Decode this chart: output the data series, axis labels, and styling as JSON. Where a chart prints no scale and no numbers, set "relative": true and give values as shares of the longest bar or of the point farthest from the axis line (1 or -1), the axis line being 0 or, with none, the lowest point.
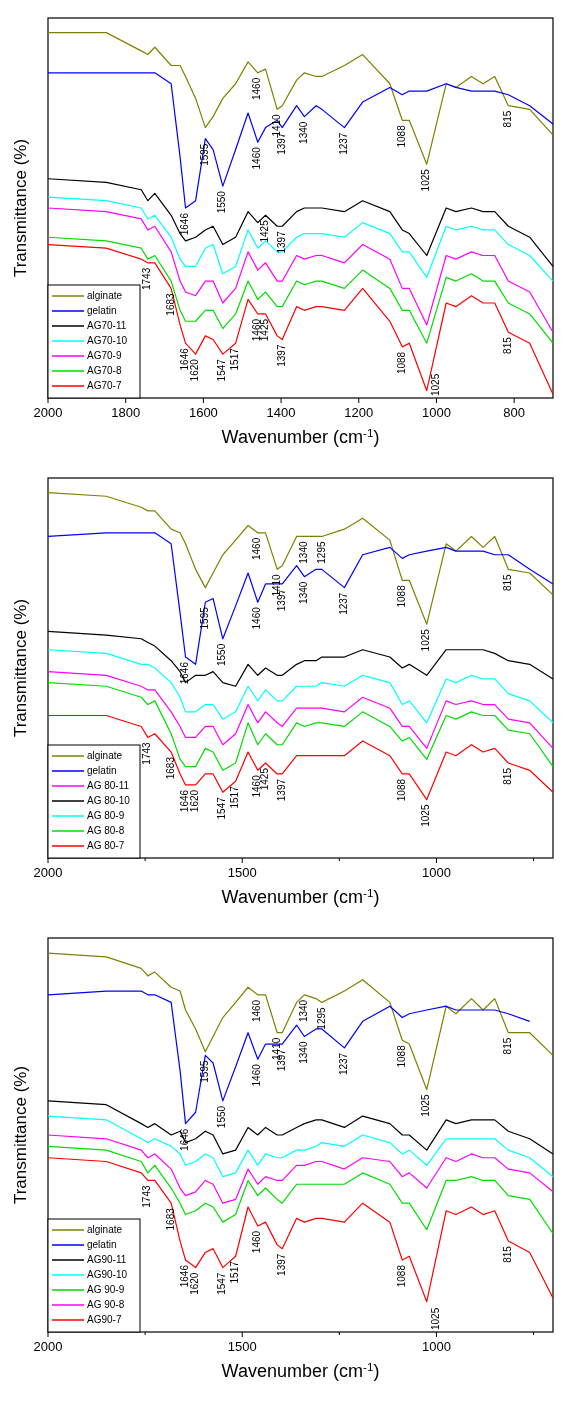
{
  "chart_data": [
    {
      "type": "line",
      "relative": true,
      "xlabel": "Wavenumber (cm$^{-1}$)",
      "ylabel": "Transmittance (%)",
      "xlim": [
        2000,
        700
      ],
      "xticks": [
        2000,
        1800,
        1600,
        1400,
        1200,
        1000,
        800
      ],
      "legend": "bottom left",
      "x": [
        2000,
        1850,
        1760,
        1743,
        1725,
        1683,
        1660,
        1646,
        1620,
        1595,
        1575,
        1550,
        1517,
        1485,
        1460,
        1440,
        1410,
        1397,
        1360,
        1340,
        1310,
        1295,
        1237,
        1190,
        1120,
        1088,
        1070,
        1025,
        975,
        950,
        910,
        880,
        850,
        815,
        760,
        700
      ],
      "series": [
        {
          "name": "alginate",
          "color": "#808000",
          "values": [
            1.0,
            1.0,
            0.95,
            0.94,
            0.96,
            0.91,
            0.91,
            0.88,
            0.82,
            0.74,
            0.77,
            0.82,
            0.86,
            0.92,
            0.89,
            0.9,
            0.79,
            0.8,
            0.87,
            0.89,
            0.88,
            0.88,
            0.91,
            0.94,
            0.86,
            0.76,
            0.76,
            0.64,
            0.86,
            0.85,
            0.88,
            0.86,
            0.88,
            0.8,
            0.79,
            0.72
          ]
        },
        {
          "name": "gelatin",
          "color": "#0000ff",
          "values": [
            0.89,
            0.89,
            0.89,
            0.89,
            0.89,
            0.86,
            0.66,
            0.52,
            0.54,
            0.71,
            0.68,
            0.58,
            0.68,
            0.78,
            0.7,
            0.74,
            0.76,
            0.74,
            0.8,
            0.77,
            0.8,
            0.79,
            0.74,
            0.81,
            0.85,
            0.83,
            0.84,
            0.84,
            0.86,
            0.85,
            0.84,
            0.84,
            0.84,
            0.83,
            0.8,
            0.75
          ]
        },
        {
          "name": "AG70-11",
          "color": "#000000",
          "values": [
            0.6,
            0.59,
            0.57,
            0.54,
            0.56,
            0.5,
            0.45,
            0.43,
            0.44,
            0.46,
            0.47,
            0.42,
            0.44,
            0.51,
            0.48,
            0.5,
            0.47,
            0.47,
            0.51,
            0.52,
            0.52,
            0.52,
            0.51,
            0.54,
            0.51,
            0.46,
            0.45,
            0.39,
            0.52,
            0.51,
            0.52,
            0.51,
            0.51,
            0.47,
            0.44,
            0.36
          ]
        },
        {
          "name": "AG70-10",
          "color": "#00ffff",
          "values": [
            0.55,
            0.54,
            0.52,
            0.49,
            0.5,
            0.44,
            0.38,
            0.36,
            0.36,
            0.41,
            0.42,
            0.34,
            0.36,
            0.46,
            0.41,
            0.43,
            0.4,
            0.4,
            0.44,
            0.45,
            0.45,
            0.45,
            0.44,
            0.48,
            0.45,
            0.4,
            0.4,
            0.33,
            0.47,
            0.46,
            0.47,
            0.46,
            0.46,
            0.42,
            0.39,
            0.32
          ]
        },
        {
          "name": "AG70-9",
          "color": "#ff00ff",
          "values": [
            0.52,
            0.51,
            0.49,
            0.46,
            0.47,
            0.4,
            0.32,
            0.29,
            0.28,
            0.32,
            0.32,
            0.26,
            0.3,
            0.4,
            0.35,
            0.37,
            0.32,
            0.32,
            0.39,
            0.38,
            0.39,
            0.39,
            0.37,
            0.42,
            0.38,
            0.3,
            0.3,
            0.2,
            0.39,
            0.38,
            0.4,
            0.39,
            0.39,
            0.32,
            0.29,
            0.18
          ]
        },
        {
          "name": "AG70-8",
          "color": "#00dd00",
          "values": [
            0.44,
            0.43,
            0.41,
            0.38,
            0.39,
            0.32,
            0.24,
            0.21,
            0.21,
            0.24,
            0.24,
            0.19,
            0.23,
            0.32,
            0.27,
            0.29,
            0.25,
            0.25,
            0.32,
            0.31,
            0.32,
            0.32,
            0.3,
            0.35,
            0.3,
            0.24,
            0.24,
            0.15,
            0.33,
            0.32,
            0.34,
            0.32,
            0.32,
            0.26,
            0.23,
            0.15
          ]
        },
        {
          "name": "AG70-7",
          "color": "#ff0000",
          "values": [
            0.42,
            0.41,
            0.38,
            0.37,
            0.37,
            0.3,
            0.2,
            0.15,
            0.12,
            0.17,
            0.16,
            0.12,
            0.15,
            0.27,
            0.23,
            0.23,
            0.17,
            0.16,
            0.25,
            0.24,
            0.25,
            0.25,
            0.24,
            0.3,
            0.21,
            0.14,
            0.15,
            0.02,
            0.26,
            0.25,
            0.28,
            0.26,
            0.26,
            0.18,
            0.15,
            0.01
          ]
        }
      ],
      "annotations": [
        {
          "text": "1595",
          "x": 1595,
          "y": 0.71
        },
        {
          "text": "1410",
          "x": 1410,
          "y": 0.79
        },
        {
          "text": "1460",
          "x": 1460,
          "y": 0.89
        },
        {
          "text": "1646",
          "x": 1646,
          "y": 0.52
        },
        {
          "text": "1550",
          "x": 1550,
          "y": 0.58
        },
        {
          "text": "1460",
          "x": 1460,
          "y": 0.7
        },
        {
          "text": "1397",
          "x": 1397,
          "y": 0.74
        },
        {
          "text": "1340",
          "x": 1340,
          "y": 0.77
        },
        {
          "text": "1237",
          "x": 1237,
          "y": 0.74
        },
        {
          "text": "1088",
          "x": 1088,
          "y": 0.76
        },
        {
          "text": "1025",
          "x": 1025,
          "y": 0.64
        },
        {
          "text": "815",
          "x": 815,
          "y": 0.8
        },
        {
          "text": "1425",
          "x": 1440,
          "y": 0.5
        },
        {
          "text": "1397",
          "x": 1397,
          "y": 0.47
        },
        {
          "text": "1743",
          "x": 1743,
          "y": 0.37
        },
        {
          "text": "1683",
          "x": 1683,
          "y": 0.3
        },
        {
          "text": "1646",
          "x": 1646,
          "y": 0.15
        },
        {
          "text": "1620",
          "x": 1620,
          "y": 0.12
        },
        {
          "text": "1547",
          "x": 1550,
          "y": 0.12
        },
        {
          "text": "1517",
          "x": 1517,
          "y": 0.15
        },
        {
          "text": "1460",
          "x": 1460,
          "y": 0.23
        },
        {
          "text": "1425",
          "x": 1440,
          "y": 0.23
        },
        {
          "text": "1397",
          "x": 1397,
          "y": 0.16
        },
        {
          "text": "1088",
          "x": 1088,
          "y": 0.14
        },
        {
          "text": "1025",
          "x": 1025,
          "y": 0.02
        },
        {
          "text": "815",
          "x": 815,
          "y": 0.18
        }
      ]
    },
    {
      "type": "line",
      "relative": true,
      "xlabel": "Wavenumber (cm$^{-1}$)",
      "ylabel": "Transmittance (%)",
      "xlim": [
        2000,
        700
      ],
      "xticks": [
        2000,
        {
          "value": 1750,
          "label": null
        },
        1500,
        {
          "value": 1250,
          "label": null
        },
        1000,
        {
          "value": 750,
          "label": null
        }
      ],
      "legend": "bottom left",
      "x": [
        2000,
        1850,
        1760,
        1743,
        1725,
        1683,
        1660,
        1646,
        1620,
        1595,
        1575,
        1550,
        1517,
        1485,
        1460,
        1440,
        1410,
        1397,
        1360,
        1340,
        1310,
        1295,
        1237,
        1190,
        1120,
        1088,
        1070,
        1025,
        975,
        950,
        910,
        880,
        850,
        815,
        760,
        700
      ],
      "series": [
        {
          "name": "alginate",
          "color": "#808000",
          "values": [
            1.0,
            0.99,
            0.96,
            0.95,
            0.95,
            0.9,
            0.89,
            0.86,
            0.79,
            0.74,
            0.78,
            0.83,
            0.87,
            0.91,
            0.89,
            0.89,
            0.79,
            0.8,
            0.88,
            0.88,
            0.88,
            0.88,
            0.9,
            0.93,
            0.87,
            0.76,
            0.76,
            0.64,
            0.86,
            0.84,
            0.88,
            0.85,
            0.88,
            0.79,
            0.78,
            0.72
          ]
        },
        {
          "name": "gelatin",
          "color": "#0000ff",
          "values": [
            0.88,
            0.89,
            0.89,
            0.89,
            0.89,
            0.86,
            0.67,
            0.55,
            0.53,
            0.7,
            0.71,
            0.6,
            0.69,
            0.78,
            0.7,
            0.75,
            0.75,
            0.75,
            0.8,
            0.77,
            0.79,
            0.79,
            0.74,
            0.83,
            0.85,
            0.82,
            0.83,
            0.84,
            0.85,
            0.84,
            0.84,
            0.84,
            0.83,
            0.83,
            0.79,
            0.75
          ]
        },
        {
          "name": "AG 80-11",
          "color": "#ff00ff",
          "values": [
            0.51,
            0.5,
            0.47,
            0.46,
            0.46,
            0.4,
            0.36,
            0.33,
            0.33,
            0.36,
            0.36,
            0.31,
            0.34,
            0.42,
            0.37,
            0.4,
            0.37,
            0.36,
            0.41,
            0.41,
            0.41,
            0.41,
            0.4,
            0.44,
            0.41,
            0.36,
            0.36,
            0.3,
            0.43,
            0.42,
            0.43,
            0.42,
            0.42,
            0.38,
            0.37,
            0.3
          ]
        },
        {
          "name": "AG 80-10",
          "color": "#000000",
          "values": [
            0.62,
            0.61,
            0.6,
            0.59,
            0.58,
            0.54,
            0.51,
            0.48,
            0.5,
            0.5,
            0.51,
            0.48,
            0.47,
            0.53,
            0.5,
            0.52,
            0.5,
            0.5,
            0.53,
            0.54,
            0.54,
            0.55,
            0.55,
            0.57,
            0.55,
            0.52,
            0.53,
            0.5,
            0.57,
            0.57,
            0.57,
            0.57,
            0.56,
            0.54,
            0.53,
            0.49
          ]
        },
        {
          "name": "AG 80-9",
          "color": "#00ffff",
          "values": [
            0.57,
            0.56,
            0.53,
            0.53,
            0.52,
            0.48,
            0.44,
            0.4,
            0.4,
            0.42,
            0.42,
            0.38,
            0.4,
            0.47,
            0.43,
            0.46,
            0.43,
            0.43,
            0.47,
            0.47,
            0.47,
            0.48,
            0.47,
            0.5,
            0.48,
            0.42,
            0.43,
            0.37,
            0.49,
            0.48,
            0.5,
            0.49,
            0.49,
            0.45,
            0.43,
            0.37
          ]
        },
        {
          "name": "AG 80-8",
          "color": "#00dd00",
          "values": [
            0.48,
            0.47,
            0.44,
            0.42,
            0.43,
            0.34,
            0.27,
            0.25,
            0.25,
            0.3,
            0.29,
            0.24,
            0.26,
            0.37,
            0.31,
            0.34,
            0.31,
            0.31,
            0.37,
            0.36,
            0.37,
            0.37,
            0.36,
            0.4,
            0.36,
            0.32,
            0.33,
            0.27,
            0.39,
            0.38,
            0.4,
            0.39,
            0.39,
            0.35,
            0.34,
            0.25
          ]
        },
        {
          "name": "AG 80-7",
          "color": "#ff0000",
          "values": [
            0.39,
            0.39,
            0.36,
            0.33,
            0.34,
            0.29,
            0.23,
            0.2,
            0.2,
            0.23,
            0.23,
            0.18,
            0.21,
            0.29,
            0.24,
            0.26,
            0.23,
            0.23,
            0.28,
            0.28,
            0.28,
            0.28,
            0.28,
            0.32,
            0.28,
            0.23,
            0.23,
            0.16,
            0.29,
            0.28,
            0.31,
            0.29,
            0.3,
            0.26,
            0.24,
            0.18
          ]
        }
      ],
      "annotations": [
        {
          "text": "1595",
          "x": 1595,
          "y": 0.7
        },
        {
          "text": "1460",
          "x": 1460,
          "y": 0.89
        },
        {
          "text": "1410",
          "x": 1410,
          "y": 0.79
        },
        {
          "text": "1340",
          "x": 1340,
          "y": 0.88
        },
        {
          "text": "1295",
          "x": 1295,
          "y": 0.88
        },
        {
          "text": "1646",
          "x": 1646,
          "y": 0.55
        },
        {
          "text": "1550",
          "x": 1550,
          "y": 0.6
        },
        {
          "text": "1460",
          "x": 1460,
          "y": 0.7
        },
        {
          "text": "1397",
          "x": 1397,
          "y": 0.75
        },
        {
          "text": "1340",
          "x": 1340,
          "y": 0.77
        },
        {
          "text": "1237",
          "x": 1237,
          "y": 0.74
        },
        {
          "text": "1088",
          "x": 1088,
          "y": 0.76
        },
        {
          "text": "1025",
          "x": 1025,
          "y": 0.64
        },
        {
          "text": "815",
          "x": 815,
          "y": 0.79
        },
        {
          "text": "1743",
          "x": 1743,
          "y": 0.33
        },
        {
          "text": "1683",
          "x": 1683,
          "y": 0.29
        },
        {
          "text": "1646",
          "x": 1646,
          "y": 0.2
        },
        {
          "text": "1620",
          "x": 1620,
          "y": 0.2
        },
        {
          "text": "1547",
          "x": 1550,
          "y": 0.18
        },
        {
          "text": "1517",
          "x": 1517,
          "y": 0.21
        },
        {
          "text": "1460",
          "x": 1460,
          "y": 0.24
        },
        {
          "text": "1425",
          "x": 1440,
          "y": 0.26
        },
        {
          "text": "1397",
          "x": 1397,
          "y": 0.23
        },
        {
          "text": "1088",
          "x": 1088,
          "y": 0.23
        },
        {
          "text": "1025",
          "x": 1025,
          "y": 0.16
        },
        {
          "text": "815",
          "x": 815,
          "y": 0.26
        }
      ]
    },
    {
      "type": "line",
      "relative": true,
      "xlabel": "Wavenumber (cm$^{-1}$)",
      "ylabel": "Transmittance (%)",
      "xlim": [
        2000,
        700
      ],
      "xticks": [
        2000,
        {
          "value": 1750,
          "label": null
        },
        1500,
        {
          "value": 1250,
          "label": null
        },
        1000,
        {
          "value": 750,
          "label": null
        }
      ],
      "legend": "bottom left",
      "x": [
        2000,
        1850,
        1760,
        1743,
        1725,
        1683,
        1660,
        1646,
        1620,
        1595,
        1575,
        1550,
        1517,
        1485,
        1460,
        1440,
        1410,
        1397,
        1360,
        1340,
        1310,
        1295,
        1237,
        1190,
        1120,
        1088,
        1070,
        1025,
        975,
        950,
        910,
        880,
        850,
        815,
        760,
        700
      ],
      "series": [
        {
          "name": "alginate",
          "color": "#808000",
          "values": [
            1.0,
            0.99,
            0.96,
            0.94,
            0.95,
            0.91,
            0.9,
            0.85,
            0.8,
            0.74,
            0.78,
            0.83,
            0.87,
            0.91,
            0.89,
            0.89,
            0.79,
            0.79,
            0.87,
            0.89,
            0.88,
            0.87,
            0.9,
            0.93,
            0.87,
            0.77,
            0.76,
            0.64,
            0.86,
            0.84,
            0.88,
            0.85,
            0.88,
            0.79,
            0.79,
            0.73
          ]
        },
        {
          "name": "gelatin",
          "color": "#0000ff",
          "values": [
            0.89,
            0.9,
            0.9,
            0.89,
            0.89,
            0.87,
            0.69,
            0.55,
            0.58,
            0.73,
            0.71,
            0.61,
            0.7,
            0.79,
            0.72,
            0.76,
            0.76,
            0.76,
            0.81,
            0.78,
            0.8,
            0.8,
            0.75,
            0.82,
            0.86,
            0.83,
            0.84,
            0.85,
            0.86,
            0.85,
            0.85,
            0.85,
            0.85,
            0.84,
            0.82,
            null
          ]
        },
        {
          "name": "AG90-11",
          "color": "#000000",
          "values": [
            0.61,
            0.6,
            0.55,
            0.54,
            0.55,
            0.52,
            0.53,
            0.5,
            0.51,
            0.53,
            0.52,
            0.47,
            0.48,
            0.54,
            0.52,
            0.54,
            0.52,
            0.52,
            0.54,
            0.55,
            0.56,
            0.56,
            0.54,
            0.57,
            0.55,
            0.52,
            0.52,
            0.48,
            0.56,
            0.55,
            0.56,
            0.56,
            0.56,
            0.53,
            0.51,
            0.47
          ]
        },
        {
          "name": "AG90-10",
          "color": "#00ffff",
          "values": [
            0.57,
            0.56,
            0.51,
            0.5,
            0.51,
            0.49,
            0.47,
            0.44,
            0.45,
            0.47,
            0.46,
            0.41,
            0.42,
            0.48,
            0.44,
            0.47,
            0.46,
            0.46,
            0.48,
            0.48,
            0.49,
            0.5,
            0.49,
            0.52,
            0.5,
            0.47,
            0.48,
            0.44,
            0.51,
            0.51,
            0.51,
            0.51,
            0.51,
            0.48,
            0.46,
            0.41
          ]
        },
        {
          "name": "AG 90-9",
          "color": "#00dd00",
          "values": [
            0.49,
            0.48,
            0.45,
            0.42,
            0.44,
            0.38,
            0.34,
            0.31,
            0.32,
            0.34,
            0.33,
            0.29,
            0.31,
            0.4,
            0.36,
            0.38,
            0.35,
            0.34,
            0.39,
            0.39,
            0.39,
            0.39,
            0.39,
            0.42,
            0.39,
            0.34,
            0.34,
            0.27,
            0.4,
            0.4,
            0.41,
            0.4,
            0.4,
            0.36,
            0.35,
            0.26
          ]
        },
        {
          "name": "AG 90-8",
          "color": "#ff00ff",
          "values": [
            0.52,
            0.51,
            0.48,
            0.46,
            0.47,
            0.43,
            0.38,
            0.36,
            0.37,
            0.4,
            0.39,
            0.34,
            0.35,
            0.43,
            0.39,
            0.41,
            0.4,
            0.4,
            0.44,
            0.44,
            0.45,
            0.45,
            0.43,
            0.46,
            0.45,
            0.41,
            0.42,
            0.38,
            0.46,
            0.45,
            0.47,
            0.46,
            0.46,
            0.43,
            0.42,
            0.37
          ]
        },
        {
          "name": "AG90-7",
          "color": "#ff0000",
          "values": [
            0.46,
            0.45,
            0.42,
            0.4,
            0.4,
            0.34,
            0.24,
            0.19,
            0.17,
            0.21,
            0.22,
            0.17,
            0.2,
            0.33,
            0.28,
            0.29,
            0.23,
            0.22,
            0.3,
            0.29,
            0.3,
            0.3,
            0.29,
            0.34,
            0.29,
            0.19,
            0.2,
            0.08,
            0.32,
            0.31,
            0.33,
            0.31,
            0.32,
            0.24,
            0.21,
            0.09
          ]
        }
      ],
      "annotations": [
        {
          "text": "1595",
          "x": 1595,
          "y": 0.73
        },
        {
          "text": "1460",
          "x": 1460,
          "y": 0.89
        },
        {
          "text": "1410",
          "x": 1410,
          "y": 0.79
        },
        {
          "text": "1340",
          "x": 1340,
          "y": 0.89
        },
        {
          "text": "1295",
          "x": 1295,
          "y": 0.87
        },
        {
          "text": "1646",
          "x": 1646,
          "y": 0.55
        },
        {
          "text": "1550",
          "x": 1550,
          "y": 0.61
        },
        {
          "text": "1460",
          "x": 1460,
          "y": 0.72
        },
        {
          "text": "1397",
          "x": 1397,
          "y": 0.76
        },
        {
          "text": "1340",
          "x": 1340,
          "y": 0.78
        },
        {
          "text": "1237",
          "x": 1237,
          "y": 0.75
        },
        {
          "text": "1088",
          "x": 1088,
          "y": 0.77
        },
        {
          "text": "1025",
          "x": 1025,
          "y": 0.64
        },
        {
          "text": "815",
          "x": 815,
          "y": 0.79
        },
        {
          "text": "1743",
          "x": 1743,
          "y": 0.4
        },
        {
          "text": "1683",
          "x": 1683,
          "y": 0.34
        },
        {
          "text": "1646",
          "x": 1646,
          "y": 0.19
        },
        {
          "text": "1620",
          "x": 1620,
          "y": 0.17
        },
        {
          "text": "1547",
          "x": 1550,
          "y": 0.17
        },
        {
          "text": "1517",
          "x": 1517,
          "y": 0.2
        },
        {
          "text": "1460",
          "x": 1460,
          "y": 0.28
        },
        {
          "text": "1397",
          "x": 1397,
          "y": 0.22
        },
        {
          "text": "1088",
          "x": 1088,
          "y": 0.19
        },
        {
          "text": "1025",
          "x": 1025,
          "y": 0.08
        },
        {
          "text": "815",
          "x": 815,
          "y": 0.24
        }
      ]
    }
  ]
}
